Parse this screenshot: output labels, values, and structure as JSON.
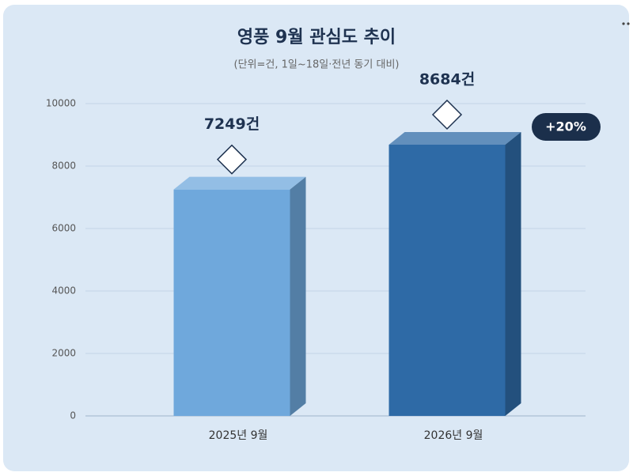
{
  "chart_data": {
    "type": "bar3d",
    "title": "영풍 9월 관심도 추이",
    "subtitle": "(단위=건, 1일~18일·전년 동기 대비)",
    "categories": [
      "2025년 9월",
      "2026년 9월"
    ],
    "values": [
      7249,
      8684
    ],
    "value_labels": [
      "7249건",
      "8684건"
    ],
    "colors": [
      "#6fa8dc",
      "#2e6aa6"
    ],
    "annotation": "+20%",
    "ylim": [
      0,
      10000
    ],
    "yticks": [
      0,
      2000,
      4000,
      6000,
      8000,
      10000
    ],
    "grid": true
  }
}
